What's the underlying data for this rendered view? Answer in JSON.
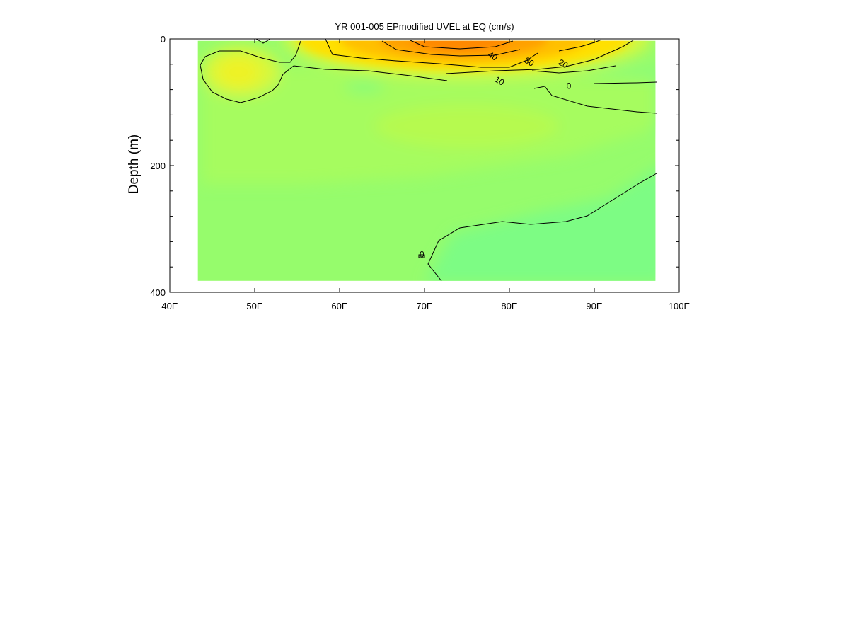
{
  "chart_data": {
    "type": "heatmap",
    "title": "YR 001-005 EPmodified UVEL at EQ (cm/s)",
    "xlabel": "",
    "ylabel": "Depth (m)",
    "xlim": [
      40,
      100
    ],
    "ylim": [
      0,
      400
    ],
    "y_inverted": true,
    "x_tick_labels": [
      "40E",
      "50E",
      "60E",
      "70E",
      "80E",
      "90E",
      "100E"
    ],
    "x_tick_values": [
      40,
      50,
      60,
      70,
      80,
      90,
      100
    ],
    "y_tick_labels": [
      "0",
      "200",
      "400"
    ],
    "y_tick_values": [
      0,
      200,
      400
    ],
    "y_minor_tick_values": [
      40,
      80,
      120,
      160,
      240,
      280,
      320,
      360
    ],
    "data_extent": {
      "lon": [
        43.3,
        97.2
      ],
      "depth": [
        3,
        382
      ]
    },
    "colors": {
      "background_field": "#96fc6c",
      "strong_current": "#ff8800",
      "weak_current": "#7dfc84",
      "contour_line": "#000000"
    },
    "contour_labels": [
      {
        "text": "40",
        "lon": 78.0,
        "depth": 28
      },
      {
        "text": "30",
        "lon": 82.3,
        "depth": 37
      },
      {
        "text": "20",
        "lon": 86.3,
        "depth": 40
      },
      {
        "text": "10",
        "lon": 78.8,
        "depth": 67
      },
      {
        "text": "0",
        "lon": 87.0,
        "depth": 75
      },
      {
        "text": "0",
        "lon": 69.7,
        "depth": 341
      }
    ]
  }
}
